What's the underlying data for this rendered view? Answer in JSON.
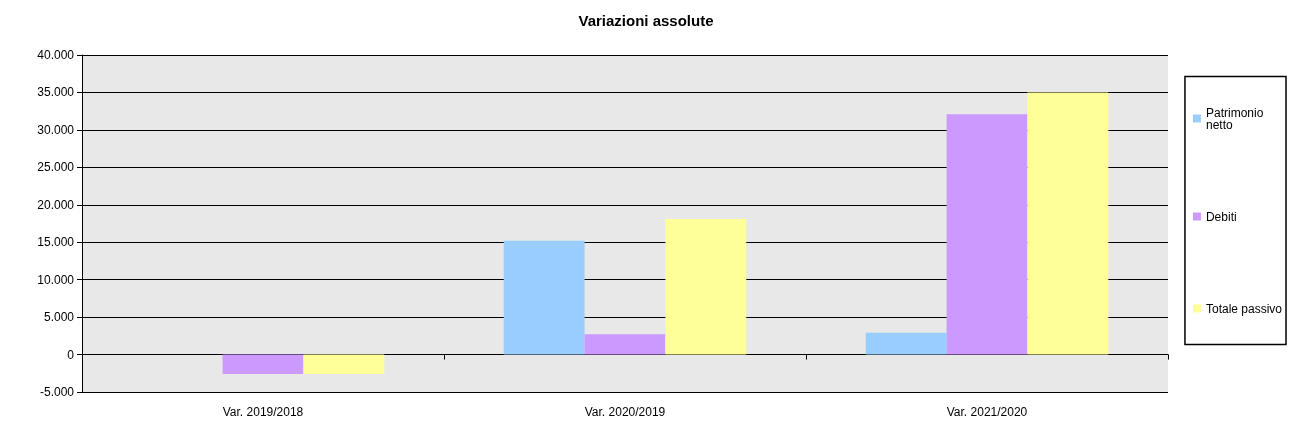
{
  "chart_data": {
    "type": "bar",
    "title": "Variazioni assolute",
    "categories": [
      "Var. 2019/2018",
      "Var. 2020/2019",
      "Var. 2021/2020"
    ],
    "series": [
      {
        "name": "Patrimonio netto",
        "color": "#99ccff",
        "values": [
          0,
          15200,
          2900
        ]
      },
      {
        "name": "Debiti",
        "color": "#cc99ff",
        "values": [
          -2600,
          2700,
          32100
        ]
      },
      {
        "name": "Totale passivo",
        "color": "#ffff99",
        "values": [
          -2600,
          18100,
          35000
        ]
      }
    ],
    "ylim": [
      -5000,
      40000
    ],
    "yticks": [
      {
        "value": -5000,
        "label": "-5.000"
      },
      {
        "value": 0,
        "label": "0"
      },
      {
        "value": 5000,
        "label": "5.000"
      },
      {
        "value": 10000,
        "label": "10.000"
      },
      {
        "value": 15000,
        "label": "15.000"
      },
      {
        "value": 20000,
        "label": "20.000"
      },
      {
        "value": 25000,
        "label": "25.000"
      },
      {
        "value": 30000,
        "label": "30.000"
      },
      {
        "value": 35000,
        "label": "35.000"
      },
      {
        "value": 40000,
        "label": "40.000"
      }
    ],
    "grid": "y",
    "legend": "right"
  }
}
